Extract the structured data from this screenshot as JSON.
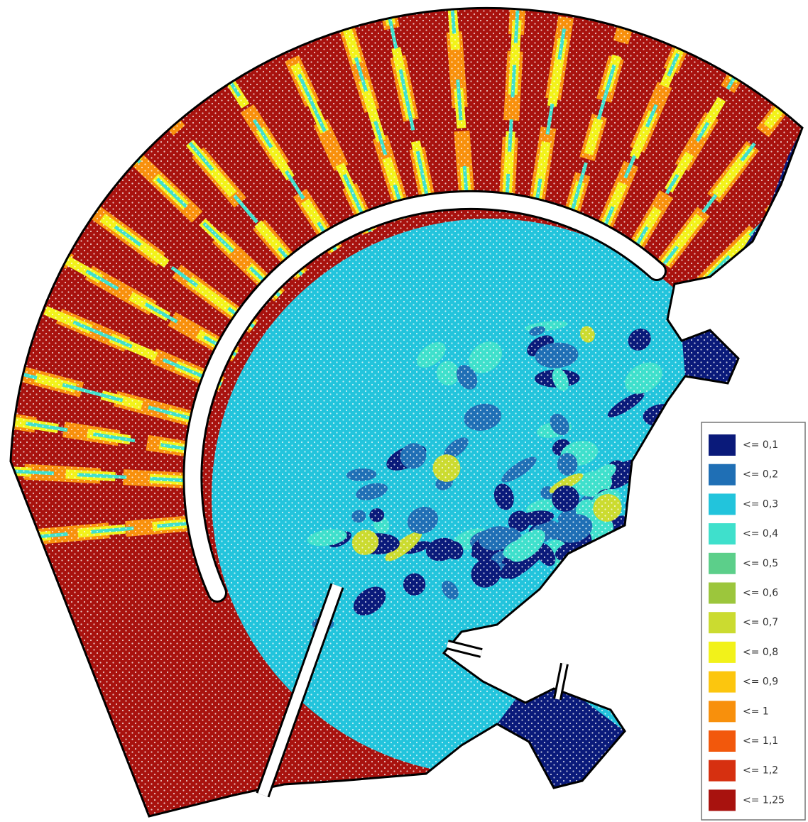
{
  "legend": {
    "items": [
      {
        "label": "<= 0,1",
        "color": "#0a1a7a"
      },
      {
        "label": "<= 0,2",
        "color": "#1f6fb5"
      },
      {
        "label": "<= 0,3",
        "color": "#22c4dc"
      },
      {
        "label": "<= 0,4",
        "color": "#3fe0cc"
      },
      {
        "label": "<= 0,5",
        "color": "#5ccf8a"
      },
      {
        "label": "<= 0,6",
        "color": "#9cc63c"
      },
      {
        "label": "<= 0,7",
        "color": "#cbdb30"
      },
      {
        "label": "<= 0,8",
        "color": "#f2f21a"
      },
      {
        "label": "<= 0,9",
        "color": "#fcc60e"
      },
      {
        "label": "<= 1",
        "color": "#f8900c"
      },
      {
        "label": "<= 1,1",
        "color": "#f2580c"
      },
      {
        "label": "<= 1,2",
        "color": "#d63010"
      },
      {
        "label": "<= 1,25",
        "color": "#a8120e"
      }
    ]
  }
}
